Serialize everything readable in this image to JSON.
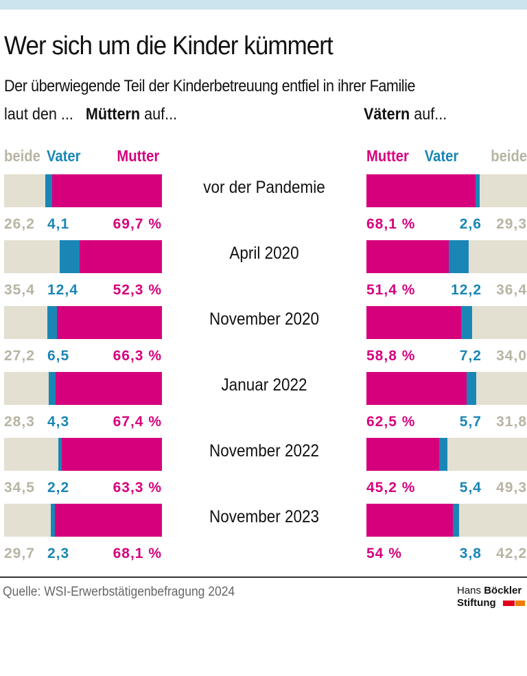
{
  "title": "Wer sich um die Kinder kümmert",
  "subtitle": "Der überwiegende Teil der Kinderbetreuung entfiel in ihrer Familie",
  "left_intro": "laut den ...",
  "left_group_bold": "Müttern",
  "left_group_rest": "auf...",
  "right_group_bold": "Vätern",
  "right_group_rest": "auf...",
  "source": "Quelle: WSI-Erwerbstätigenbefragung 2024",
  "logo": {
    "line1_light": "Hans",
    "line1_bold": "Böckler",
    "line2": "Stiftung"
  },
  "colors": {
    "mutter": "#d6007d",
    "vater": "#1a86b5",
    "beide": "#e3e0d1",
    "beide_text": "#b8b4a3"
  },
  "chart_data": {
    "type": "bar",
    "stacked": true,
    "orientation": "horizontal",
    "unit": "%",
    "categories": [
      "vor der Pandemie",
      "April 2020",
      "November 2020",
      "Januar 2022",
      "November 2022",
      "November 2023"
    ],
    "panels": [
      {
        "group": "Müttern",
        "legend": [
          "beide",
          "Vater",
          "Mutter"
        ],
        "series": [
          {
            "name": "beide",
            "values": [
              26.2,
              35.4,
              27.2,
              28.3,
              34.5,
              29.7
            ]
          },
          {
            "name": "Vater",
            "values": [
              4.1,
              12.4,
              6.5,
              4.3,
              2.2,
              2.3
            ]
          },
          {
            "name": "Mutter",
            "values": [
              69.7,
              52.3,
              66.3,
              67.4,
              63.3,
              68.1
            ]
          }
        ],
        "labels": {
          "beide": [
            "26,2",
            "35,4",
            "27,2",
            "28,3",
            "34,5",
            "29,7"
          ],
          "Vater": [
            "4,1",
            "12,4",
            "6,5",
            "4,3",
            "2,2",
            "2,3"
          ],
          "Mutter": [
            "69,7 %",
            "52,3 %",
            "66,3 %",
            "67,4 %",
            "63,3 %",
            "68,1 %"
          ]
        }
      },
      {
        "group": "Vätern",
        "legend": [
          "Mutter",
          "Vater",
          "beide"
        ],
        "series": [
          {
            "name": "Mutter",
            "values": [
              68.1,
              51.4,
              58.8,
              62.5,
              45.2,
              54
            ]
          },
          {
            "name": "Vater",
            "values": [
              2.6,
              12.2,
              7.2,
              5.7,
              5.4,
              3.8
            ]
          },
          {
            "name": "beide",
            "values": [
              29.3,
              36.4,
              34.0,
              31.8,
              49.3,
              42.2
            ]
          }
        ],
        "labels": {
          "Mutter": [
            "68,1 %",
            "51,4 %",
            "58,8 %",
            "62,5 %",
            "45,2 %",
            "54 %"
          ],
          "Vater": [
            "2,6",
            "12,2",
            "7,2",
            "5,7",
            "5,4",
            "3,8"
          ],
          "beide": [
            "29,3",
            "36,4",
            "34,0",
            "31,8",
            "49,3",
            "42,2"
          ]
        }
      }
    ]
  }
}
